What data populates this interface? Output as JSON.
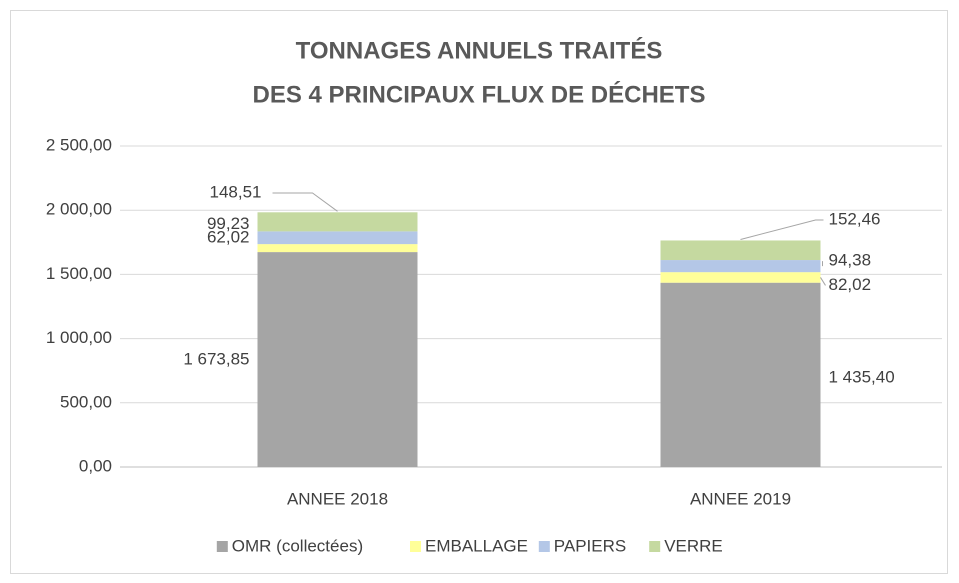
{
  "chart_data": {
    "type": "stacked_bar",
    "title": [
      "TONNAGES ANNUELS TRAITÉS",
      "DES 4 PRINCIPAUX FLUX DE DÉCHETS"
    ],
    "categories": [
      "ANNEE 2018",
      "ANNEE 2019"
    ],
    "series": [
      {
        "name": "OMR (collectées)",
        "color": "#a5a5a5",
        "values": [
          1673.85,
          1435.4
        ],
        "value_labels": [
          "1 673,85",
          "1 435,40"
        ]
      },
      {
        "name": "EMBALLAGE",
        "color": "#ffff99",
        "values": [
          62.02,
          82.02
        ],
        "value_labels": [
          "62,02",
          "82,02"
        ]
      },
      {
        "name": "PAPIERS",
        "color": "#b4c7e7",
        "values": [
          99.23,
          94.38
        ],
        "value_labels": [
          "99,23",
          "94,38"
        ]
      },
      {
        "name": "VERRE",
        "color": "#c5d9a0",
        "values": [
          148.51,
          152.46
        ],
        "value_labels": [
          "148,51",
          "152,46"
        ]
      }
    ],
    "ylim": [
      0,
      2500
    ],
    "yticks": [
      {
        "value": 0,
        "label": "0,00"
      },
      {
        "value": 500,
        "label": "500,00"
      },
      {
        "value": 1000,
        "label": "1 000,00"
      },
      {
        "value": 1500,
        "label": "1 500,00"
      },
      {
        "value": 2000,
        "label": "2 000,00"
      },
      {
        "value": 2500,
        "label": "2 500,00"
      }
    ],
    "grid": true,
    "legend": "bottom"
  }
}
